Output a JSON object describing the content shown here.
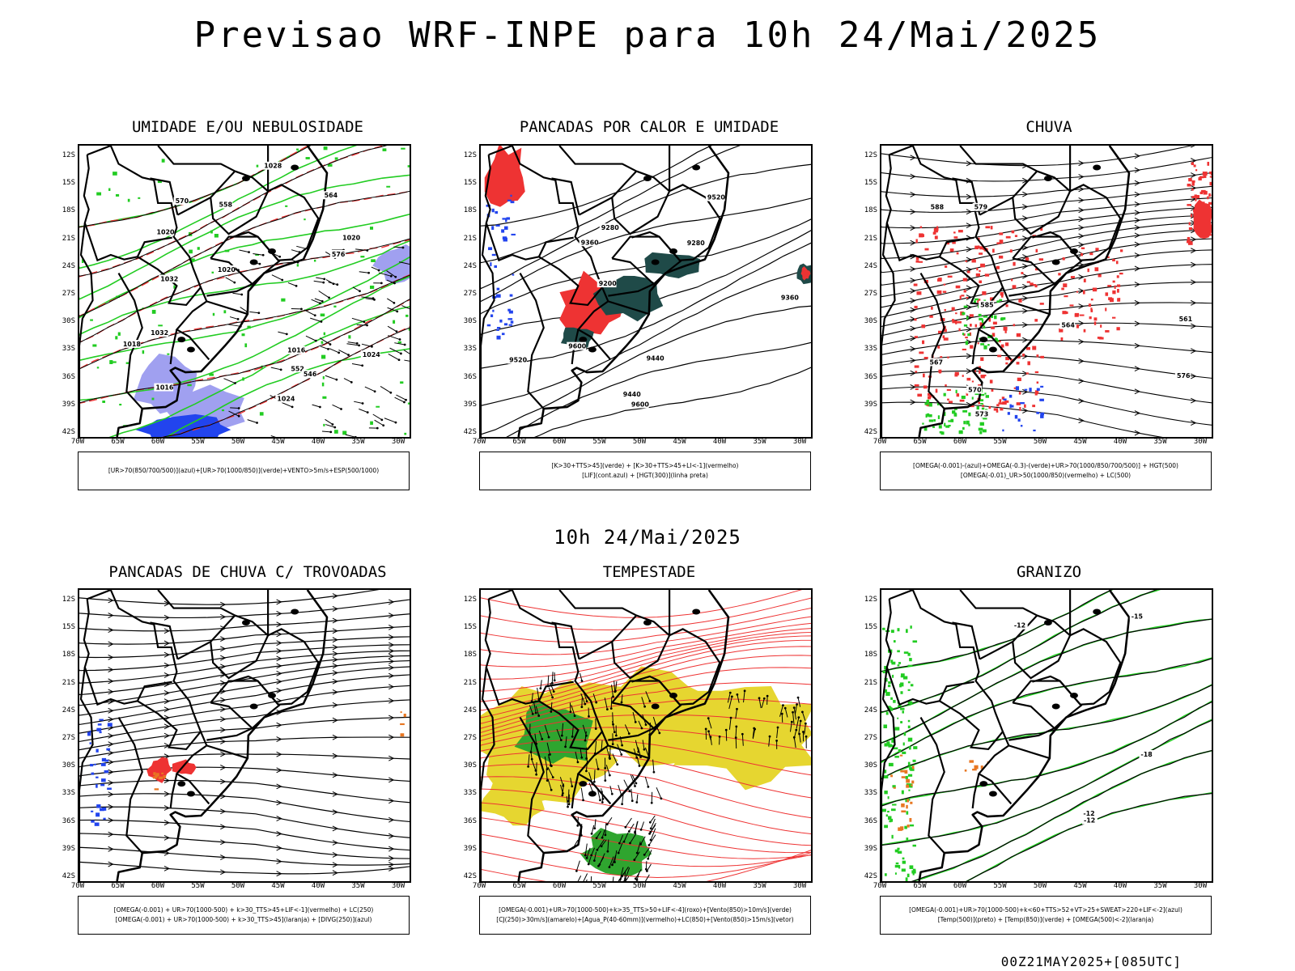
{
  "title": "Previsao WRF-INPE  para 10h 24/Mai/2025",
  "mid_title": "10h 24/Mai/2025",
  "footer": "00Z21MAY2025+[085UTC]",
  "axes": {
    "lat_labels": [
      "12S",
      "15S",
      "18S",
      "21S",
      "24S",
      "27S",
      "30S",
      "33S",
      "36S",
      "39S",
      "42S"
    ],
    "lon_labels": [
      "70W",
      "65W",
      "60W",
      "55W",
      "50W",
      "45W",
      "40W",
      "35W",
      "30W"
    ]
  },
  "colors": {
    "green": "#22cc22",
    "red": "#ee3333",
    "blue": "#2244ee",
    "lavender": "#a0a0f0",
    "darkteal": "#1f4a48",
    "yellow": "#e6d630",
    "orange": "#e87722"
  },
  "panels": [
    {
      "title": "UMIDADE E/OU NEBULOSIDADE",
      "legend": [
        "[UR>70(850/700/500)](azul)+[UR>70(1000/850)](verde)+VENTO>5m/s+ESP(500/1000)"
      ],
      "contour_labels": [
        "1016",
        "1016",
        "1018",
        "1020",
        "1024",
        "1024",
        "1020",
        "1028",
        "1032",
        "1032",
        "1020",
        "570",
        "576",
        "564",
        "558",
        "552",
        "546"
      ]
    },
    {
      "title": "PANCADAS POR CALOR E UMIDADE",
      "legend": [
        "[K>30+TTS>45](verde)  +  [K>30+TTS>45+LI<-1](vermelho)",
        "[LIF](cont.azul)  +  [HGT(300)](linha preta)"
      ],
      "contour_labels": [
        "9600",
        "9600",
        "9520",
        "9520",
        "9440",
        "9440",
        "9360",
        "9360",
        "9280",
        "9280",
        "9200"
      ]
    },
    {
      "title": "CHUVA",
      "legend": [
        "[OMEGA(-0.001)-(azul)+OMEGA(-0.3)-(verde)+UR>70(1000/850/700/500)]  +  HGT(500)",
        "[OMEGA(-0.01)_UR>50(1000/850)(vermelho)  +  LC(500)"
      ],
      "contour_labels": [
        "585",
        "579",
        "576",
        "573",
        "570",
        "567",
        "564",
        "561",
        "588"
      ]
    },
    {
      "title": "PANCADAS DE CHUVA C/ TROVOADAS",
      "legend": [
        "[OMEGA(-0.001)  +  UR>70(1000-500)  +  k>30_TTS>45+LIF<-1](vermelho)  +  LC(250)",
        "[OMEGA(-0.001)  +  UR>70(1000-500)  +  k>30_TTS>45](laranja)  +  [DIVG(250)](azul)"
      ],
      "contour_labels": []
    },
    {
      "title": "TEMPESTADE",
      "legend": [
        "[OMEGA(-0.001)+UR>70(1000-500)+k>35_TTS>50+LIF<-4](roxo)+[Vento(850)>10m/s](verde)",
        "[CJ(250)>30m/s](amarelo)+[Agua_P(40-60mm)](vermelho)+LC(850)+[Vento(850)>15m/s](vetor)"
      ],
      "contour_labels": []
    },
    {
      "title": "GRANIZO",
      "legend": [
        "[OMEGA(-0.001)+UR>70(1000-500)+k<60+TTS>52+VT>25+SWEAT>220+LIF<-2](azul)",
        "[Temp(500)](preto)  +  [Temp(850)](verde)  +  [OMEGA(500)<-2](laranja)"
      ],
      "contour_labels": [
        "-12",
        "-12",
        "-15",
        "-18",
        "-12"
      ]
    }
  ]
}
